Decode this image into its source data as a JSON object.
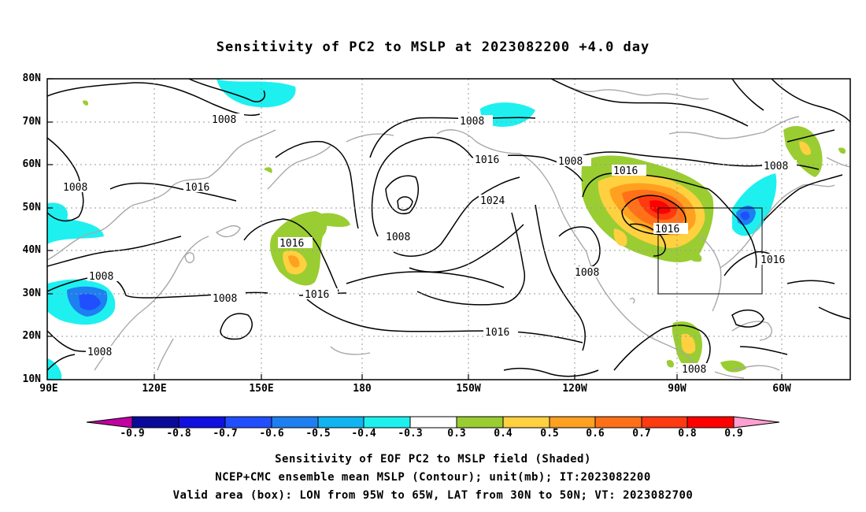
{
  "title": "Sensitivity of PC2 to MSLP at 2023082200 +4.0 day",
  "lat_labels": [
    "80N",
    "70N",
    "60N",
    "50N",
    "40N",
    "30N",
    "20N",
    "10N"
  ],
  "lon_labels": [
    "90E",
    "120E",
    "150E",
    "180",
    "150W",
    "120W",
    "90W",
    "60W"
  ],
  "contour_labels": {
    "c1": "1008",
    "c2": "1008",
    "c3": "1016",
    "c4": "1008",
    "c5": "1008",
    "c6": "1016",
    "c7": "1016",
    "c8": "1016",
    "c9": "1024",
    "c10": "1008",
    "c11": "1008",
    "c12": "1016",
    "c13": "1008",
    "c14": "1016",
    "c15": "1008",
    "c16": "1016",
    "c17": "1016",
    "c18": "1008",
    "c19": "1008",
    "c20": "1008"
  },
  "colorbar": {
    "labels": [
      "-0.9",
      "-0.8",
      "-0.7",
      "-0.6",
      "-0.5",
      "-0.4",
      "-0.3",
      "0.3",
      "0.4",
      "0.5",
      "0.6",
      "0.7",
      "0.8",
      "0.9"
    ],
    "colors": [
      "#c000a0",
      "#0a0a9a",
      "#1010e0",
      "#1f4fff",
      "#1e7ff0",
      "#10b4f0",
      "#1ef0f0",
      "#ffffff",
      "#9acd32",
      "#ffd040",
      "#ffa020",
      "#ff7018",
      "#ff3a10",
      "#ff0000",
      "#ff9ed0"
    ]
  },
  "caption": {
    "line1": "Sensitivity of EOF PC2 to MSLP field (Shaded)",
    "line2": "NCEP+CMC ensemble mean MSLP (Contour); unit(mb); IT:2023082200",
    "line3": "Valid area (box): LON from 95W to 65W, LAT from 30N to 50N; VT: 2023082700"
  }
}
